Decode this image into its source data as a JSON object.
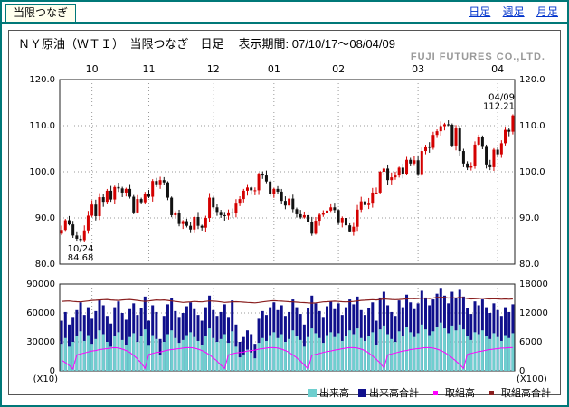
{
  "page": {
    "tab_label": "当限つなぎ",
    "nav_links": [
      "日足",
      "週足",
      "月足"
    ]
  },
  "header": {
    "title": "ＮＹ原油（ＷＴＩ）　当限つなぎ　日足",
    "period": "表示期間: 07/10/17～08/04/09",
    "company": "FUJI FUTURES CO.,LTD."
  },
  "colors": {
    "frame": "#007878",
    "link": "#0033cc",
    "up": "#d40000",
    "down": "#111111",
    "grid": "#999999",
    "volume": "#6fcfcf",
    "volume_total": "#10108c",
    "oi": "#ff00ff",
    "oi_total": "#8a1f1f",
    "company_text": "#999999"
  },
  "legend": [
    {
      "key": "volume",
      "label": "出来高",
      "color": "#6fcfcf",
      "marker": "bar"
    },
    {
      "key": "volume-total",
      "label": "出来高合計",
      "color": "#10108c",
      "marker": "bar"
    },
    {
      "key": "open-interest",
      "label": "取組高",
      "color": "#ff00ff",
      "marker": "line"
    },
    {
      "key": "open-interest-total",
      "label": "取組高合計",
      "color": "#8a1f1f",
      "marker": "line"
    }
  ],
  "chart_data": {
    "type": "candlestick_with_volume",
    "title": "ＮＹ原油（ＷＴＩ） 当限つなぎ 日足",
    "period": "07/10/17～08/04/09",
    "price_axis": {
      "min": 80,
      "max": 120,
      "ticks": [
        {
          "v": 120,
          "label": "120.0"
        },
        {
          "v": 110,
          "label": "110.0"
        },
        {
          "v": 100,
          "label": "100.0"
        },
        {
          "v": 90,
          "label": "90.0"
        },
        {
          "v": 80,
          "label": "80.0"
        }
      ]
    },
    "months": [
      {
        "label": "10",
        "idx": 8
      },
      {
        "label": "11",
        "idx": 23
      },
      {
        "label": "12",
        "idx": 40
      },
      {
        "label": "01",
        "idx": 56
      },
      {
        "label": "02",
        "idx": 73
      },
      {
        "label": "03",
        "idx": 94
      },
      {
        "label": "04",
        "idx": 115
      }
    ],
    "closes": [
      87.4,
      89.5,
      88.6,
      86.2,
      85.5,
      85.2,
      87.3,
      90.5,
      92.9,
      90.4,
      94.5,
      93.5,
      95.9,
      94.0,
      96.7,
      96.4,
      95.5,
      96.3,
      94.6,
      91.2,
      94.1,
      93.4,
      95.1,
      94.6,
      98.0,
      97.3,
      98.2,
      97.7,
      94.4,
      90.6,
      91.0,
      88.7,
      89.3,
      88.3,
      87.5,
      90.2,
      88.3,
      87.9,
      90.0,
      94.4,
      92.3,
      91.3,
      90.6,
      90.5,
      91.2,
      91.1,
      93.3,
      94.1,
      95.9,
      96.6,
      96.0,
      96.0,
      99.6,
      99.2,
      97.9,
      95.1,
      96.3,
      95.7,
      93.7,
      92.7,
      94.2,
      91.9,
      90.8,
      90.1,
      90.6,
      89.2,
      86.6,
      89.4,
      90.7,
      91.0,
      91.6,
      92.3,
      91.7,
      88.9,
      90.0,
      88.4,
      87.1,
      88.1,
      91.8,
      93.6,
      92.8,
      93.3,
      95.5,
      95.5,
      100.0,
      100.7,
      98.2,
      98.8,
      99.2,
      100.9,
      99.6,
      102.6,
      101.8,
      102.5,
      99.5,
      104.5,
      105.5,
      105.2,
      108.0,
      108.8,
      109.9,
      110.3,
      110.2,
      105.7,
      109.4,
      104.5,
      101.8,
      100.9,
      101.2,
      105.9,
      107.6,
      105.6,
      101.6,
      101.0,
      104.8,
      103.8,
      106.2,
      109.1,
      108.7,
      112.21
    ],
    "low_override": {
      "5": 84.68
    },
    "high_override": {
      "119": 112.45
    },
    "annotations": [
      {
        "index": 5,
        "anchor_value": 84.68,
        "position": "below",
        "lines": [
          "10/24",
          "84.68"
        ]
      },
      {
        "index": 119,
        "anchor_value": 112.45,
        "position": "above",
        "lines": [
          "04/09",
          "112.21"
        ]
      }
    ],
    "volume_axis_left": {
      "max": 90000,
      "unit": "(X10)",
      "ticks": [
        {
          "v": 90000,
          "label": "90000"
        },
        {
          "v": 60000,
          "label": "60000"
        },
        {
          "v": 30000,
          "label": "30000"
        },
        {
          "v": 0,
          "label": "0"
        }
      ]
    },
    "volume_axis_right": {
      "max": 18000,
      "unit": "(X100)",
      "ticks": [
        {
          "v": 18000,
          "label": "18000"
        },
        {
          "v": 12000,
          "label": "12000"
        },
        {
          "v": 6000,
          "label": "6000"
        },
        {
          "v": 0,
          "label": "0"
        }
      ]
    },
    "volume_total": [
      52000,
      61000,
      48000,
      55000,
      63000,
      71000,
      58000,
      66000,
      54000,
      62000,
      74000,
      68000,
      57000,
      49000,
      66000,
      72000,
      60000,
      53000,
      64000,
      70000,
      58000,
      65000,
      77000,
      52000,
      68000,
      61000,
      33000,
      57000,
      69000,
      75000,
      62000,
      55000,
      60000,
      67000,
      71000,
      64000,
      58000,
      52000,
      66000,
      78000,
      63000,
      57000,
      61000,
      69000,
      55000,
      73000,
      48000,
      30000,
      35000,
      42000,
      38000,
      28000,
      54000,
      62000,
      58000,
      66000,
      71000,
      63000,
      68000,
      57000,
      61000,
      74000,
      66000,
      59000,
      48000,
      65000,
      78000,
      70000,
      62000,
      55000,
      67000,
      72000,
      64000,
      70000,
      58000,
      66000,
      74000,
      69000,
      77000,
      63000,
      58000,
      65000,
      71000,
      52000,
      76000,
      82000,
      68000,
      61000,
      57000,
      73000,
      66000,
      79000,
      71000,
      64000,
      70000,
      83000,
      76000,
      68000,
      74000,
      80000,
      86000,
      78000,
      70000,
      82000,
      75000,
      84000,
      77000,
      65000,
      59000,
      72000,
      68000,
      74000,
      66000,
      60000,
      70000,
      63000,
      57000,
      66000,
      61000,
      69000
    ],
    "volume": [
      28000,
      34000,
      25000,
      30000,
      36000,
      41000,
      31000,
      37000,
      28000,
      33000,
      42000,
      38000,
      30000,
      25000,
      36000,
      40000,
      32000,
      27000,
      35000,
      39000,
      30000,
      36000,
      43000,
      26000,
      37000,
      33000,
      16000,
      30000,
      38000,
      42000,
      34000,
      29000,
      32000,
      37000,
      40000,
      35000,
      31000,
      27000,
      36000,
      44000,
      34000,
      30000,
      33000,
      38000,
      29000,
      41000,
      25000,
      14000,
      17000,
      22000,
      19000,
      13000,
      29000,
      34000,
      31000,
      37000,
      40000,
      34000,
      38000,
      30000,
      33000,
      42000,
      36000,
      32000,
      25000,
      35000,
      44000,
      39000,
      34000,
      29000,
      37000,
      40000,
      35000,
      39000,
      31000,
      36000,
      42000,
      38000,
      44000,
      34000,
      31000,
      36000,
      40000,
      27000,
      43000,
      47000,
      38000,
      33000,
      30000,
      41000,
      36000,
      45000,
      40000,
      35000,
      39000,
      48000,
      43000,
      37000,
      41000,
      45000,
      50000,
      44000,
      39000,
      47000,
      42000,
      48000,
      43000,
      36000,
      32000,
      40000,
      38000,
      42000,
      36000,
      33000,
      39000,
      35000,
      31000,
      37000,
      34000,
      39000
    ],
    "oi": [
      2200,
      1700,
      1100,
      400,
      3300,
      3500,
      3700,
      3900,
      4100,
      4200,
      4400,
      4500,
      4600,
      4700,
      4800,
      4700,
      4500,
      4200,
      3800,
      3200,
      2500,
      1600,
      500,
      3400,
      3600,
      3800,
      3900,
      4100,
      4300,
      4400,
      4500,
      4600,
      4700,
      4800,
      4800,
      4700,
      4500,
      4200,
      3800,
      3300,
      2700,
      2000,
      1200,
      500,
      3300,
      3500,
      3700,
      3800,
      3900,
      4100,
      4200,
      4300,
      4500,
      4600,
      4700,
      4800,
      4800,
      4700,
      4500,
      4200,
      3800,
      3300,
      2700,
      2000,
      1200,
      400,
      3200,
      3400,
      3600,
      3800,
      4000,
      4100,
      4300,
      4400,
      4600,
      4700,
      4800,
      4800,
      4700,
      4500,
      4200,
      3700,
      3100,
      2400,
      1600,
      600,
      3300,
      3500,
      3700,
      3900,
      4100,
      4200,
      4400,
      4500,
      4600,
      4700,
      4800,
      4800,
      4700,
      4500,
      4200,
      3800,
      3300,
      2700,
      2000,
      1300,
      500,
      3400,
      3600,
      3800,
      4000,
      4100,
      4300,
      4400,
      4500,
      4600,
      4700,
      4700,
      4800,
      4800
    ],
    "oi_total": [
      14400,
      14450,
      14500,
      14400,
      14350,
      14300,
      14400,
      14500,
      14600,
      14650,
      14700,
      14750,
      14800,
      14700,
      14650,
      14600,
      14700,
      14750,
      14800,
      14700,
      14600,
      14500,
      14400,
      14500,
      14600,
      14700,
      14650,
      14700,
      14600,
      14500,
      14400,
      14300,
      14200,
      14250,
      14300,
      14400,
      14350,
      14300,
      14400,
      14500,
      14450,
      14400,
      14300,
      14200,
      14250,
      14300,
      14350,
      14300,
      14250,
      14200,
      14150,
      14100,
      14200,
      14300,
      14400,
      14500,
      14550,
      14500,
      14450,
      14400,
      14350,
      14300,
      14250,
      14200,
      14150,
      14100,
      14050,
      14100,
      14200,
      14300,
      14350,
      14400,
      14450,
      14400,
      14350,
      14300,
      14350,
      14400,
      14500,
      14600,
      14650,
      14700,
      14750,
      14700,
      14800,
      14900,
      14850,
      14800,
      14750,
      14800,
      14850,
      14900,
      15000,
      14950,
      15000,
      15100,
      15050,
      15000,
      15100,
      15200,
      15250,
      15200,
      15100,
      15150,
      15100,
      15200,
      15150,
      15000,
      14900,
      14950,
      15000,
      15050,
      14950,
      14900,
      14950,
      14900,
      14850,
      14900,
      14850,
      14900
    ]
  }
}
